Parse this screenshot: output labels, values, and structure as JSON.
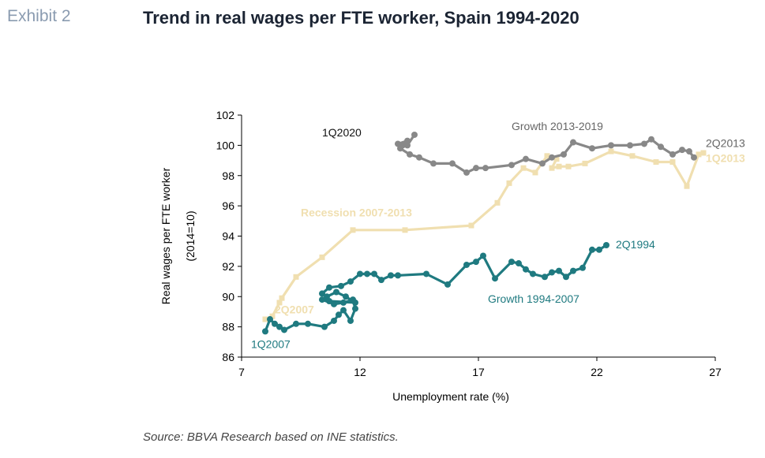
{
  "header": {
    "exhibit": "Exhibit 2",
    "title": "Trend in real wages per FTE worker, Spain 1994-2020"
  },
  "footer": {
    "source": "Source: BBVA Research based on INE statistics."
  },
  "chart_data": {
    "type": "line",
    "ylabel_line1": "Real wages per FTE worker",
    "ylabel_line2": "(2014=10)",
    "xlabel": "Unemployment rate (%)",
    "xlim": [
      7,
      27
    ],
    "ylim": [
      86,
      102
    ],
    "xticks": [
      7,
      12,
      17,
      22,
      27
    ],
    "yticks": [
      86,
      88,
      90,
      92,
      94,
      96,
      98,
      100,
      102
    ],
    "grid": false,
    "series": [
      {
        "key": "growth_1994_2007",
        "color": "#1f7a80",
        "marker": "circle",
        "points": [
          [
            22.4,
            93.4
          ],
          [
            22.1,
            93.1
          ],
          [
            21.8,
            93.1
          ],
          [
            21.4,
            91.9
          ],
          [
            21.0,
            91.7
          ],
          [
            20.7,
            91.3
          ],
          [
            20.4,
            91.7
          ],
          [
            20.1,
            91.6
          ],
          [
            19.8,
            91.3
          ],
          [
            19.3,
            91.5
          ],
          [
            19.0,
            91.8
          ],
          [
            18.7,
            92.2
          ],
          [
            18.4,
            92.3
          ],
          [
            17.7,
            91.2
          ],
          [
            17.2,
            92.7
          ],
          [
            16.9,
            92.3
          ],
          [
            16.5,
            92.1
          ],
          [
            15.7,
            90.8
          ],
          [
            14.8,
            91.5
          ],
          [
            13.6,
            91.4
          ],
          [
            13.3,
            91.4
          ],
          [
            12.9,
            91.1
          ],
          [
            12.6,
            91.5
          ],
          [
            12.3,
            91.5
          ],
          [
            12.0,
            91.5
          ],
          [
            11.6,
            91.0
          ],
          [
            11.2,
            90.7
          ],
          [
            10.7,
            90.6
          ],
          [
            10.4,
            90.2
          ],
          [
            10.6,
            90.0
          ],
          [
            11.0,
            90.3
          ],
          [
            11.4,
            90.0
          ],
          [
            11.8,
            89.6
          ],
          [
            10.7,
            89.7
          ],
          [
            10.4,
            89.8
          ],
          [
            10.9,
            89.5
          ],
          [
            11.3,
            89.6
          ],
          [
            11.7,
            89.8
          ],
          [
            11.8,
            89.2
          ],
          [
            11.6,
            88.4
          ],
          [
            11.3,
            89.1
          ],
          [
            11.1,
            88.8
          ],
          [
            10.9,
            88.4
          ],
          [
            10.5,
            88.0
          ],
          [
            9.8,
            88.2
          ],
          [
            9.3,
            88.2
          ],
          [
            8.8,
            87.8
          ],
          [
            8.6,
            88.0
          ],
          [
            8.4,
            88.2
          ],
          [
            8.2,
            88.5
          ],
          [
            8.0,
            87.7
          ]
        ]
      },
      {
        "key": "recession_2007_2013",
        "color": "#f0dfb0",
        "marker": "square",
        "points": [
          [
            8.0,
            88.5
          ],
          [
            8.3,
            88.7
          ],
          [
            8.6,
            89.6
          ],
          [
            8.7,
            89.9
          ],
          [
            9.3,
            91.3
          ],
          [
            10.4,
            92.6
          ],
          [
            11.7,
            94.4
          ],
          [
            13.9,
            94.4
          ],
          [
            16.7,
            94.7
          ],
          [
            17.8,
            96.2
          ],
          [
            18.3,
            97.5
          ],
          [
            18.9,
            98.5
          ],
          [
            19.4,
            98.2
          ],
          [
            19.9,
            99.3
          ],
          [
            20.3,
            99.1
          ],
          [
            20.1,
            98.5
          ],
          [
            20.4,
            98.6
          ],
          [
            20.8,
            98.6
          ],
          [
            21.5,
            98.8
          ],
          [
            22.6,
            99.6
          ],
          [
            23.5,
            99.3
          ],
          [
            24.5,
            98.9
          ],
          [
            25.2,
            98.9
          ],
          [
            25.8,
            97.3
          ],
          [
            26.3,
            99.4
          ],
          [
            26.5,
            99.5
          ]
        ]
      },
      {
        "key": "growth_2013_2019",
        "color": "#888888",
        "marker": "circle",
        "points": [
          [
            26.1,
            99.2
          ],
          [
            25.9,
            99.6
          ],
          [
            25.6,
            99.7
          ],
          [
            25.2,
            99.4
          ],
          [
            24.7,
            99.9
          ],
          [
            24.3,
            100.4
          ],
          [
            24.0,
            100.1
          ],
          [
            23.4,
            100.0
          ],
          [
            22.6,
            100.0
          ],
          [
            21.8,
            99.8
          ],
          [
            21.0,
            100.2
          ],
          [
            20.6,
            99.4
          ],
          [
            20.1,
            99.2
          ],
          [
            19.7,
            98.8
          ],
          [
            19.0,
            99.1
          ],
          [
            18.4,
            98.7
          ],
          [
            17.3,
            98.5
          ],
          [
            16.9,
            98.5
          ],
          [
            16.5,
            98.2
          ],
          [
            15.9,
            98.8
          ],
          [
            15.1,
            98.8
          ],
          [
            14.5,
            99.2
          ],
          [
            14.1,
            99.4
          ],
          [
            13.7,
            99.8
          ],
          [
            13.6,
            100.1
          ],
          [
            14.0,
            100.3
          ],
          [
            13.8,
            100.0
          ],
          [
            14.0,
            100.0
          ],
          [
            14.3,
            100.7
          ]
        ]
      }
    ],
    "annotations": [
      {
        "key": "growth_1994_2007_label",
        "text": "Growth 1994-2007",
        "x": 17.4,
        "y": 89.6,
        "color": "#1f7a80",
        "anchor": "start"
      },
      {
        "key": "q1994_label",
        "text": "2Q1994",
        "x": 22.8,
        "y": 93.2,
        "color": "#1f7a80",
        "anchor": "start"
      },
      {
        "key": "q1_2007_label",
        "text": "1Q2007",
        "x": 7.4,
        "y": 86.6,
        "color": "#1f7a80",
        "anchor": "start"
      },
      {
        "key": "q2_2007_label",
        "text": "2Q2007",
        "x": 8.4,
        "y": 88.9,
        "color": "#f0dfb0",
        "anchor": "start"
      },
      {
        "key": "recession_label",
        "text": "Recession 2007-2013",
        "x": 9.5,
        "y": 95.3,
        "color": "#f0dfb0",
        "anchor": "start"
      },
      {
        "key": "q1_2013_label",
        "text": "1Q2013",
        "x": 26.6,
        "y": 98.9,
        "color": "#f0dfb0",
        "anchor": "start"
      },
      {
        "key": "q2_2013_label",
        "text": "2Q2013",
        "x": 26.6,
        "y": 99.9,
        "color": "#666666",
        "anchor": "start"
      },
      {
        "key": "growth_2013_2019_label",
        "text": "Growth 2013-2019",
        "x": 18.4,
        "y": 101.0,
        "color": "#666666",
        "anchor": "start"
      },
      {
        "key": "q1_2020_label",
        "text": "1Q2020",
        "x": 10.4,
        "y": 100.6,
        "color": "#111111",
        "anchor": "start"
      }
    ]
  }
}
